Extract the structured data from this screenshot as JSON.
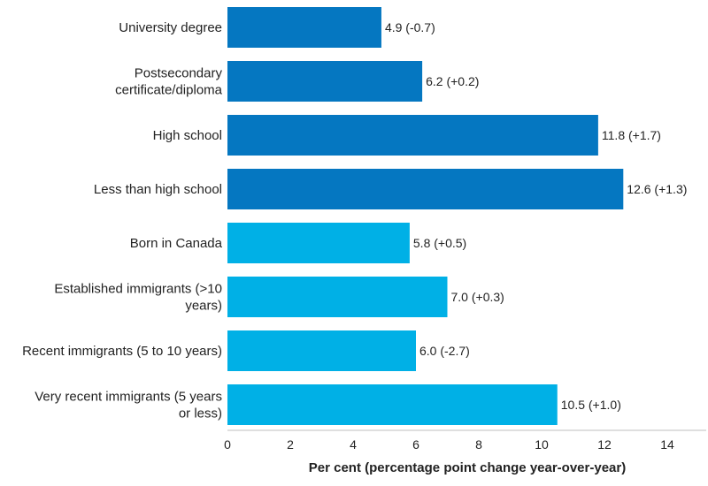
{
  "chart_data": {
    "type": "bar",
    "orientation": "horizontal",
    "title": "",
    "xlabel": "Per cent (percentage point change year-over-year)",
    "ylabel": "",
    "xlim": [
      0,
      15
    ],
    "xticks": [
      0,
      2,
      4,
      6,
      8,
      10,
      12,
      14
    ],
    "grid": false,
    "legend": "none",
    "categories": [
      [
        "University degree"
      ],
      [
        "Postsecondary",
        "certificate/diploma"
      ],
      [
        "High school"
      ],
      [
        "Less than high school"
      ],
      [
        "Born in Canada"
      ],
      [
        "Established immigrants (>10",
        "years)"
      ],
      [
        "Recent immigrants (5 to 10 years)"
      ],
      [
        "Very recent immigrants (5 years",
        "or less)"
      ]
    ],
    "values": [
      4.9,
      6.2,
      11.8,
      12.6,
      5.8,
      7.0,
      6.0,
      10.5
    ],
    "data_labels": [
      "4.9 (-0.7)",
      "6.2 (+0.2)",
      "11.8 (+1.7)",
      "12.6 (+1.3)",
      "5.8 (+0.5)",
      "7.0 (+0.3)",
      "6.0 (-2.7)",
      "10.5 (+1.0)"
    ],
    "bar_colors": [
      "#0577c1",
      "#0577c1",
      "#0577c1",
      "#0577c1",
      "#00b0e6",
      "#00b0e6",
      "#00b0e6",
      "#00b0e6"
    ],
    "axis_color": "#bfbfbf"
  }
}
